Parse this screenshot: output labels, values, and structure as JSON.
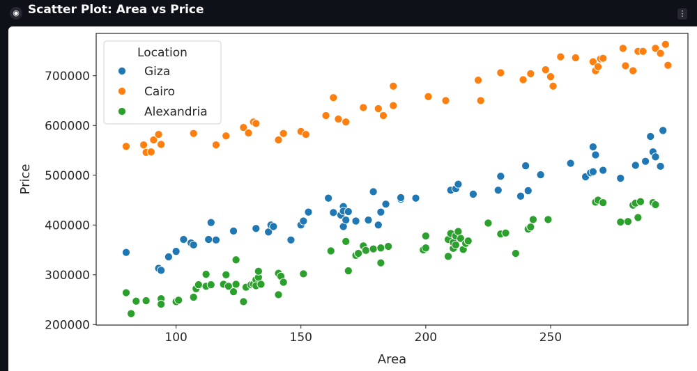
{
  "window": {
    "title": "Scatter Plot: Area vs Price",
    "app_icon": "streamlit-icon",
    "menu_icon": "vertical-dots-icon"
  },
  "chart_data": {
    "type": "scatter",
    "title": "",
    "xlabel": "Area",
    "ylabel": "Price",
    "xlim": [
      68,
      305
    ],
    "ylim": [
      199000,
      785000
    ],
    "xticks": [
      100,
      150,
      200,
      250
    ],
    "yticks": [
      200000,
      300000,
      400000,
      500000,
      600000,
      700000
    ],
    "legend_title": "Location",
    "legend_position": "top-left",
    "grid": false,
    "series": [
      {
        "name": "Giza",
        "color": "#1f77b4",
        "points": [
          [
            80,
            345000
          ],
          [
            93,
            313000
          ],
          [
            94,
            309000
          ],
          [
            97,
            336000
          ],
          [
            100,
            347000
          ],
          [
            103,
            371000
          ],
          [
            106,
            364000
          ],
          [
            107,
            360000
          ],
          [
            113,
            371000
          ],
          [
            114,
            405000
          ],
          [
            116,
            370000
          ],
          [
            123,
            388000
          ],
          [
            132,
            393000
          ],
          [
            137,
            386000
          ],
          [
            138,
            400000
          ],
          [
            139,
            397000
          ],
          [
            146,
            370000
          ],
          [
            150,
            400000
          ],
          [
            151,
            408000
          ],
          [
            153,
            426000
          ],
          [
            161,
            454000
          ],
          [
            163,
            425000
          ],
          [
            166,
            420000
          ],
          [
            167,
            437000
          ],
          [
            167,
            428000
          ],
          [
            167,
            397000
          ],
          [
            168,
            410000
          ],
          [
            169,
            427000
          ],
          [
            172,
            408000
          ],
          [
            177,
            410000
          ],
          [
            179,
            467000
          ],
          [
            181,
            400000
          ],
          [
            182,
            426000
          ],
          [
            184,
            442000
          ],
          [
            190,
            452000
          ],
          [
            190,
            455000
          ],
          [
            196,
            454000
          ],
          [
            210,
            470000
          ],
          [
            212,
            473000
          ],
          [
            213,
            482000
          ],
          [
            219,
            462000
          ],
          [
            229,
            470000
          ],
          [
            230,
            498000
          ],
          [
            238,
            458000
          ],
          [
            240,
            519000
          ],
          [
            241,
            469000
          ],
          [
            246,
            501000
          ],
          [
            258,
            524000
          ],
          [
            264,
            497000
          ],
          [
            266,
            505000
          ],
          [
            267,
            507000
          ],
          [
            267,
            557000
          ],
          [
            268,
            541000
          ],
          [
            271,
            510000
          ],
          [
            278,
            494000
          ],
          [
            284,
            520000
          ],
          [
            288,
            528000
          ],
          [
            290,
            578000
          ],
          [
            291,
            547000
          ],
          [
            292,
            537000
          ],
          [
            294,
            518000
          ],
          [
            295,
            590000
          ]
        ]
      },
      {
        "name": "Cairo",
        "color": "#ff7f0e",
        "points": [
          [
            80,
            558000
          ],
          [
            87,
            561000
          ],
          [
            88,
            546000
          ],
          [
            90,
            547000
          ],
          [
            91,
            571000
          ],
          [
            93,
            582000
          ],
          [
            94,
            562000
          ],
          [
            107,
            584000
          ],
          [
            116,
            561000
          ],
          [
            120,
            579000
          ],
          [
            127,
            596000
          ],
          [
            129,
            585000
          ],
          [
            131,
            607000
          ],
          [
            132,
            604000
          ],
          [
            141,
            571000
          ],
          [
            143,
            584000
          ],
          [
            150,
            588000
          ],
          [
            152,
            582000
          ],
          [
            160,
            620000
          ],
          [
            163,
            656000
          ],
          [
            165,
            613000
          ],
          [
            168,
            607000
          ],
          [
            175,
            636000
          ],
          [
            181,
            634000
          ],
          [
            183,
            620000
          ],
          [
            187,
            640000
          ],
          [
            187,
            679000
          ],
          [
            201,
            658000
          ],
          [
            208,
            650000
          ],
          [
            221,
            691000
          ],
          [
            222,
            650000
          ],
          [
            230,
            706000
          ],
          [
            239,
            692000
          ],
          [
            242,
            704000
          ],
          [
            248,
            712000
          ],
          [
            250,
            698000
          ],
          [
            251,
            679000
          ],
          [
            254,
            738000
          ],
          [
            260,
            736000
          ],
          [
            267,
            728000
          ],
          [
            268,
            710000
          ],
          [
            269,
            718000
          ],
          [
            270,
            734000
          ],
          [
            271,
            735000
          ],
          [
            279,
            755000
          ],
          [
            280,
            720000
          ],
          [
            283,
            710000
          ],
          [
            285,
            749000
          ],
          [
            287,
            749000
          ],
          [
            292,
            755000
          ],
          [
            294,
            745000
          ],
          [
            296,
            763000
          ],
          [
            297,
            721000
          ]
        ]
      },
      {
        "name": "Alexandria",
        "color": "#2ca02c",
        "points": [
          [
            80,
            264000
          ],
          [
            82,
            222000
          ],
          [
            84,
            247000
          ],
          [
            88,
            248000
          ],
          [
            94,
            252000
          ],
          [
            94,
            241000
          ],
          [
            100,
            246000
          ],
          [
            101,
            249000
          ],
          [
            107,
            255000
          ],
          [
            108,
            272000
          ],
          [
            109,
            280000
          ],
          [
            112,
            277000
          ],
          [
            112,
            301000
          ],
          [
            114,
            280000
          ],
          [
            119,
            281000
          ],
          [
            120,
            300000
          ],
          [
            121,
            277000
          ],
          [
            123,
            266000
          ],
          [
            124,
            281000
          ],
          [
            124,
            330000
          ],
          [
            127,
            246000
          ],
          [
            128,
            275000
          ],
          [
            130,
            280000
          ],
          [
            131,
            281000
          ],
          [
            132,
            290000
          ],
          [
            132,
            278000
          ],
          [
            133,
            295000
          ],
          [
            133,
            307000
          ],
          [
            134,
            281000
          ],
          [
            141,
            260000
          ],
          [
            141,
            303000
          ],
          [
            142,
            297000
          ],
          [
            143,
            285000
          ],
          [
            151,
            302000
          ],
          [
            162,
            348000
          ],
          [
            168,
            367000
          ],
          [
            169,
            308000
          ],
          [
            172,
            339000
          ],
          [
            173,
            343000
          ],
          [
            175,
            358000
          ],
          [
            176,
            349000
          ],
          [
            179,
            352000
          ],
          [
            182,
            324000
          ],
          [
            182,
            354000
          ],
          [
            185,
            357000
          ],
          [
            199,
            350000
          ],
          [
            200,
            354000
          ],
          [
            200,
            378000
          ],
          [
            209,
            337000
          ],
          [
            209,
            371000
          ],
          [
            210,
            383000
          ],
          [
            211,
            355000
          ],
          [
            211,
            353000
          ],
          [
            211,
            365000
          ],
          [
            212,
            360000
          ],
          [
            212,
            378000
          ],
          [
            213,
            387000
          ],
          [
            214,
            373000
          ],
          [
            215,
            351000
          ],
          [
            216,
            363000
          ],
          [
            217,
            368000
          ],
          [
            225,
            404000
          ],
          [
            230,
            382000
          ],
          [
            232,
            384000
          ],
          [
            236,
            343000
          ],
          [
            241,
            392000
          ],
          [
            242,
            396000
          ],
          [
            243,
            411000
          ],
          [
            249,
            411000
          ],
          [
            268,
            446000
          ],
          [
            269,
            450000
          ],
          [
            271,
            445000
          ],
          [
            278,
            406000
          ],
          [
            281,
            407000
          ],
          [
            283,
            440000
          ],
          [
            284,
            444000
          ],
          [
            285,
            415000
          ],
          [
            286,
            447000
          ],
          [
            291,
            445000
          ],
          [
            292,
            441000
          ]
        ]
      }
    ]
  }
}
